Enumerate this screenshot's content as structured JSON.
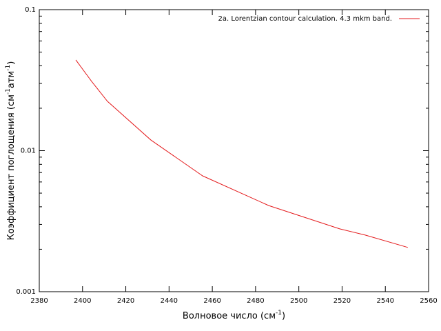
{
  "chart_data": {
    "type": "line",
    "x_label_parts": [
      {
        "text": "Волновое число (см"
      },
      {
        "text": "-1",
        "sup": true
      },
      {
        "text": ")"
      }
    ],
    "y_label_parts": [
      {
        "text": "Коэффициент поглощения (см"
      },
      {
        "text": "-1",
        "sup": true
      },
      {
        "text": "атм"
      },
      {
        "text": "-1",
        "sup": true
      },
      {
        "text": ")"
      }
    ],
    "x": [
      2396.9,
      2404.2,
      2411.5,
      2431.6,
      2455.5,
      2486.1,
      2518.9,
      2530.7,
      2550.4
    ],
    "series": [
      {
        "name": "2a. Lorentzian contour calculation. 4.3 mkm band.",
        "color": "#e41a1c",
        "values": [
          0.044,
          0.031,
          0.0224,
          0.0119,
          0.00663,
          0.00408,
          0.00279,
          0.00252,
          0.00206
        ]
      }
    ],
    "xlim": [
      2380,
      2560
    ],
    "xticks": [
      2380,
      2400,
      2420,
      2440,
      2460,
      2480,
      2500,
      2520,
      2540,
      2560
    ],
    "ylim": [
      0.001,
      0.1
    ],
    "yticks": [
      0.001,
      0.01,
      0.1
    ],
    "y_minor_ticks": [
      0.002,
      0.003,
      0.004,
      0.005,
      0.006,
      0.007,
      0.008,
      0.009,
      0.02,
      0.03,
      0.04,
      0.05,
      0.06,
      0.07,
      0.08,
      0.09
    ],
    "y_log": true,
    "grid": false,
    "legend": "top-right"
  }
}
